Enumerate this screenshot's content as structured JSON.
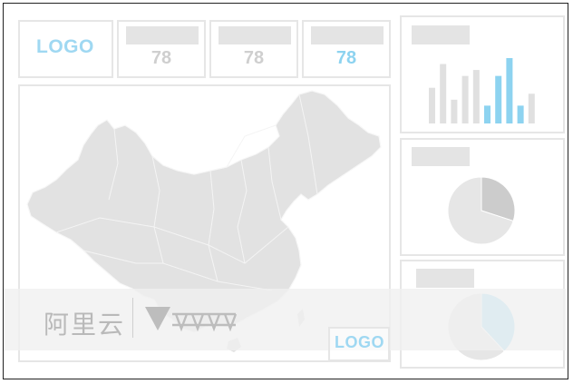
{
  "header": {
    "logo_label": "LOGO",
    "kpis": [
      {
        "value": "78",
        "highlight": false
      },
      {
        "value": "78",
        "highlight": false
      },
      {
        "value": "78",
        "highlight": true
      }
    ]
  },
  "map": {
    "region": "china-provinces",
    "fill_color": "#e2e2e2",
    "stroke_color": "#f7f7f7"
  },
  "watermark": {
    "cn_text": "阿里云",
    "brand_text": "DATAV"
  },
  "footer_logo": "LOGO",
  "chart_data": [
    {
      "type": "bar",
      "values": [
        3,
        5,
        2,
        4,
        4.5,
        1.5,
        4,
        5.5,
        1.5,
        2.5
      ],
      "highlighted_indices": [
        5,
        6,
        7,
        8
      ],
      "colors": {
        "default": "#e0e0e0",
        "highlight": "#8dd3f0"
      }
    },
    {
      "type": "pie",
      "values": [
        30,
        70
      ],
      "colors": [
        "#cccccc",
        "#e6e6e6"
      ]
    },
    {
      "type": "pie",
      "values": [
        38,
        62
      ],
      "colors": [
        "#a9def5",
        "#e6e6e6"
      ]
    }
  ]
}
